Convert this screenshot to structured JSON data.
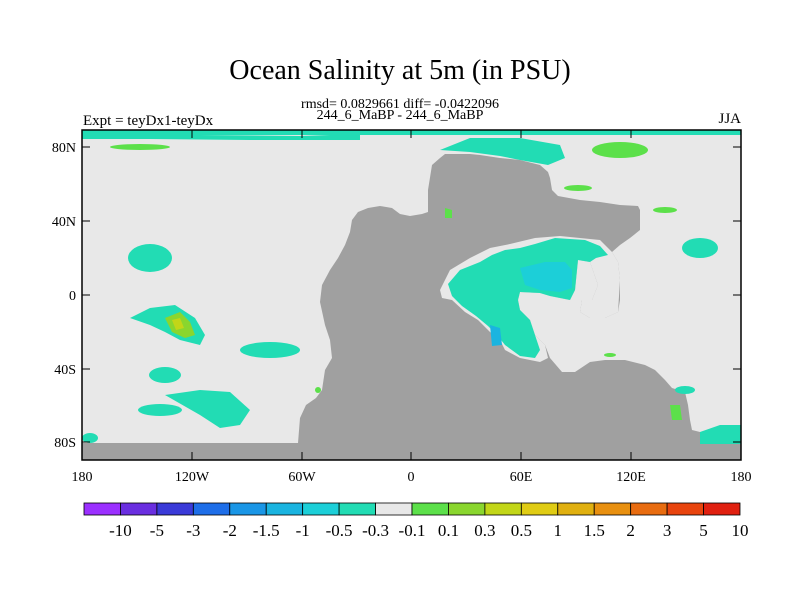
{
  "title": "Ocean Salinity at 5m (in PSU)",
  "stats": "rmsd= 0.0829661 diff= -0.0422096",
  "experiment_names": "244_6_MaBP - 244_6_MaBP",
  "left_string": "Expt = teyDx1-teyDx",
  "right_string": "JJA",
  "map": {
    "land_color": "#a0a0a0",
    "ocean_zero_color": "#e8e8e8",
    "y_tick_labels": [
      "80N",
      "40N",
      "0",
      "40S",
      "80S"
    ],
    "x_tick_labels": [
      "180",
      "120W",
      "60W",
      "0",
      "60E",
      "120E",
      "180"
    ]
  },
  "colorbar": {
    "colors": [
      "#9b30ff",
      "#6a2ee0",
      "#3a3ad8",
      "#1e6ee8",
      "#1a96e6",
      "#1ab4e0",
      "#1ccfd8",
      "#22dcb4",
      "#e8e8e8",
      "#5ce04a",
      "#8ad62e",
      "#c2d618",
      "#e0cc14",
      "#e0b010",
      "#e89010",
      "#e86c10",
      "#e8440e",
      "#e02010"
    ],
    "labels": [
      "-10",
      "-5",
      "-3",
      "-2",
      "-1.5",
      "-1",
      "-0.5",
      "-0.3",
      "-0.1",
      "0.1",
      "0.3",
      "0.5",
      "1",
      "1.5",
      "2",
      "3",
      "5",
      "10"
    ]
  }
}
